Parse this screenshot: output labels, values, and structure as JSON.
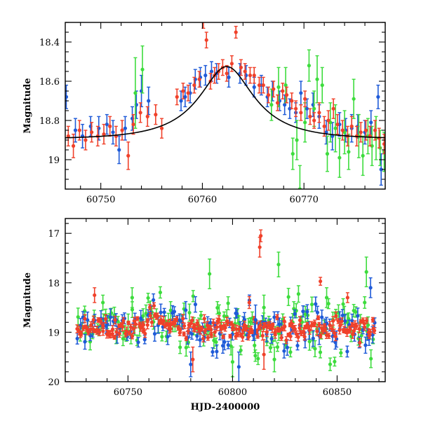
{
  "chart_data": [
    {
      "type": "scatter",
      "panel": "top",
      "title": "",
      "xlabel": "",
      "ylabel": "Magnitude",
      "xlim": [
        60746.5,
        60778.0
      ],
      "ylim": [
        18.3,
        19.15
      ],
      "y_inverted": true,
      "xticks": [
        60750,
        60760,
        60770
      ],
      "xtick_labels": [
        "60750",
        "60760",
        "60770"
      ],
      "yticks": [
        18.4,
        18.6,
        18.8,
        19.0
      ],
      "ytick_labels": [
        "18.4",
        "18.6",
        "18.8",
        "19"
      ],
      "grid": false,
      "legend": "none",
      "colors": {
        "blue": "#1f5bd8",
        "green": "#3ddc3d",
        "red": "#f0412a",
        "model": "#000000"
      },
      "model_curve": {
        "name": "",
        "baseline": 18.895,
        "peak_x": 60762.4,
        "peak_mag": 18.525,
        "tE": 6.0,
        "u0": 0.46
      },
      "series": [
        {
          "color_key": "blue",
          "x": [
            60746.6,
            60747.5,
            60748.2,
            60749.0,
            60749.8,
            60750.6,
            60751.2,
            60751.8,
            60752.4,
            60753.1,
            60753.5,
            60754.0,
            60754.7,
            60757.9,
            60758.3,
            60758.8,
            60759.3,
            60759.8,
            60760.3,
            60760.9,
            60761.4,
            60762.6,
            60763.7,
            60764.3,
            60765.1,
            60765.8,
            60766.4,
            60766.9,
            60767.6,
            60768.1,
            60768.6,
            60769.2,
            60769.7,
            60770.3,
            60770.9,
            60771.5,
            60772.2,
            60772.8,
            60773.5,
            60774.1,
            60774.7,
            60775.3,
            60776.0,
            60776.6,
            60777.3,
            60777.6
          ],
          "y": [
            18.68,
            18.85,
            18.88,
            18.83,
            18.84,
            18.82,
            18.86,
            18.95,
            18.84,
            18.79,
            18.72,
            18.65,
            18.7,
            18.7,
            18.68,
            18.66,
            18.59,
            18.58,
            18.57,
            18.55,
            18.56,
            18.58,
            18.56,
            18.57,
            18.63,
            18.62,
            18.68,
            18.65,
            18.7,
            18.72,
            18.74,
            18.76,
            18.66,
            18.74,
            18.72,
            18.78,
            18.86,
            18.88,
            18.82,
            18.85,
            18.84,
            18.83,
            18.86,
            18.81,
            18.68,
            19.05
          ],
          "err": [
            0.06,
            0.06,
            0.06,
            0.05,
            0.06,
            0.05,
            0.06,
            0.07,
            0.06,
            0.06,
            0.07,
            0.08,
            0.07,
            0.05,
            0.05,
            0.05,
            0.05,
            0.05,
            0.05,
            0.05,
            0.05,
            0.05,
            0.05,
            0.05,
            0.05,
            0.05,
            0.05,
            0.05,
            0.05,
            0.05,
            0.05,
            0.05,
            0.06,
            0.05,
            0.06,
            0.06,
            0.06,
            0.07,
            0.06,
            0.06,
            0.07,
            0.06,
            0.06,
            0.06,
            0.06,
            0.08
          ]
        },
        {
          "color_key": "green",
          "x": [
            60753.4,
            60754.1,
            60766.8,
            60767.5,
            60768.2,
            60768.9,
            60769.3,
            60769.6,
            60770.1,
            60770.5,
            60771.0,
            60771.3,
            60771.8,
            60772.3,
            60772.6,
            60773.1,
            60773.5,
            60774.0,
            60774.4,
            60774.9,
            60775.4,
            60775.8,
            60776.3,
            60776.7,
            60777.1,
            60777.5,
            60777.9
          ],
          "y": [
            18.66,
            18.54,
            18.72,
            18.63,
            18.62,
            18.97,
            18.9,
            19.15,
            18.81,
            18.52,
            18.74,
            18.59,
            18.62,
            18.97,
            18.81,
            18.84,
            18.99,
            18.86,
            18.96,
            18.69,
            18.88,
            18.98,
            18.88,
            18.93,
            18.89,
            18.94,
            18.96
          ],
          "err": [
            0.18,
            0.12,
            0.08,
            0.1,
            0.09,
            0.08,
            0.1,
            0.12,
            0.1,
            0.08,
            0.09,
            0.12,
            0.09,
            0.09,
            0.1,
            0.12,
            0.1,
            0.11,
            0.09,
            0.1,
            0.11,
            0.1,
            0.09,
            0.1,
            0.11,
            0.09,
            0.1
          ]
        },
        {
          "color_key": "red",
          "x": [
            60746.8,
            60747.3,
            60747.9,
            60748.5,
            60749.1,
            60749.7,
            60750.3,
            60750.9,
            60751.5,
            60752.1,
            60752.7,
            60753.2,
            60753.9,
            60754.6,
            60755.4,
            60756.0,
            60757.5,
            60758.1,
            60758.6,
            60759.2,
            60759.7,
            60760.1,
            60760.4,
            60760.8,
            60761.2,
            60761.6,
            60762.0,
            60762.4,
            60762.9,
            60763.3,
            60763.8,
            60764.2,
            60764.7,
            60765.1,
            60765.6,
            60766.0,
            60766.5,
            60767.0,
            60767.4,
            60767.9,
            60768.3,
            60768.8,
            60769.2,
            60769.7,
            60770.1,
            60770.6,
            60771.0,
            60771.5,
            60772.0,
            60772.4,
            60772.9,
            60773.3,
            60773.8,
            60774.3,
            60774.7,
            60775.2,
            60775.6,
            60776.1,
            60776.5,
            60777.0,
            60777.4,
            60777.9
          ],
          "y": [
            18.88,
            18.93,
            18.85,
            18.9,
            18.86,
            18.88,
            18.87,
            18.83,
            18.88,
            18.85,
            18.98,
            18.82,
            18.76,
            18.78,
            18.77,
            18.84,
            18.68,
            18.65,
            18.66,
            18.62,
            18.59,
            18.29,
            18.39,
            18.6,
            18.57,
            18.55,
            18.53,
            18.56,
            18.51,
            18.35,
            18.53,
            18.55,
            18.57,
            18.57,
            18.62,
            18.62,
            18.67,
            18.64,
            18.71,
            18.65,
            18.67,
            18.7,
            18.74,
            18.76,
            18.69,
            18.78,
            18.8,
            18.76,
            18.83,
            18.8,
            18.74,
            18.82,
            18.85,
            18.88,
            18.83,
            18.88,
            18.86,
            18.85,
            18.88,
            18.85,
            18.89,
            18.92
          ],
          "err": [
            0.05,
            0.06,
            0.05,
            0.05,
            0.05,
            0.05,
            0.05,
            0.05,
            0.05,
            0.05,
            0.07,
            0.05,
            0.05,
            0.05,
            0.05,
            0.05,
            0.04,
            0.04,
            0.04,
            0.04,
            0.04,
            0.04,
            0.04,
            0.04,
            0.04,
            0.04,
            0.04,
            0.04,
            0.04,
            0.03,
            0.04,
            0.04,
            0.04,
            0.04,
            0.04,
            0.04,
            0.04,
            0.04,
            0.04,
            0.04,
            0.04,
            0.04,
            0.04,
            0.04,
            0.04,
            0.04,
            0.04,
            0.05,
            0.05,
            0.05,
            0.05,
            0.05,
            0.05,
            0.05,
            0.05,
            0.05,
            0.05,
            0.05,
            0.05,
            0.05,
            0.05,
            0.05
          ]
        }
      ]
    },
    {
      "type": "scatter",
      "panel": "bottom",
      "title": "",
      "xlabel": "HJD-2400000",
      "ylabel": "Magnitude",
      "xlim": [
        60720,
        60873
      ],
      "ylim": [
        16.7,
        20.0
      ],
      "y_inverted": true,
      "xticks": [
        60750,
        60800,
        60850
      ],
      "xtick_labels": [
        "60750",
        "60800",
        "60850"
      ],
      "yticks": [
        17,
        18,
        19,
        20
      ],
      "ytick_labels": [
        "17",
        "18",
        "19",
        "20"
      ],
      "grid": false,
      "legend": "none",
      "baseline_mag": 18.92,
      "event_peak_x": 60762.4,
      "colors": {
        "blue": "#1f5bd8",
        "green": "#3ddc3d",
        "red": "#f0412a"
      },
      "outliers": [
        {
          "color_key": "red",
          "x": 60734,
          "y": 18.25,
          "err": 0.15
        },
        {
          "color_key": "red",
          "x": 60813,
          "y": 17.28,
          "err": 0.2
        },
        {
          "color_key": "red",
          "x": 60813.5,
          "y": 17.05,
          "err": 0.12
        },
        {
          "color_key": "red",
          "x": 60842,
          "y": 17.97,
          "err": 0.08
        },
        {
          "color_key": "red",
          "x": 60855,
          "y": 18.3,
          "err": 0.1
        },
        {
          "color_key": "red",
          "x": 60808,
          "y": 18.4,
          "err": 0.12
        },
        {
          "color_key": "green",
          "x": 60789,
          "y": 17.82,
          "err": 0.3
        },
        {
          "color_key": "green",
          "x": 60822,
          "y": 17.63,
          "err": 0.25
        },
        {
          "color_key": "green",
          "x": 60864,
          "y": 17.78,
          "err": 0.3
        },
        {
          "color_key": "green",
          "x": 60738,
          "y": 18.4,
          "err": 0.15
        },
        {
          "color_key": "green",
          "x": 60752,
          "y": 18.3,
          "err": 0.2
        },
        {
          "color_key": "green",
          "x": 60815,
          "y": 18.5,
          "err": 0.25
        },
        {
          "color_key": "green",
          "x": 60845,
          "y": 18.3,
          "err": 0.2
        },
        {
          "color_key": "green",
          "x": 60800,
          "y": 19.6,
          "err": 0.3
        },
        {
          "color_key": "green",
          "x": 60820,
          "y": 19.55,
          "err": 0.25
        },
        {
          "color_key": "blue",
          "x": 60866,
          "y": 18.1,
          "err": 0.2
        },
        {
          "color_key": "blue",
          "x": 60780,
          "y": 19.65,
          "err": 0.25
        },
        {
          "color_key": "blue",
          "x": 60803,
          "y": 19.7,
          "err": 0.3
        },
        {
          "color_key": "blue",
          "x": 60811,
          "y": 18.75,
          "err": 0.3
        },
        {
          "color_key": "red",
          "x": 60781,
          "y": 19.55,
          "err": 0.25
        },
        {
          "color_key": "red",
          "x": 60815,
          "y": 19.45,
          "err": 0.3
        }
      ],
      "dense_series": [
        {
          "color_key": "green",
          "x_start": 60726,
          "x_end": 60867,
          "count": 140,
          "scatter": 0.22,
          "err": 0.12
        },
        {
          "color_key": "blue",
          "x_start": 60726,
          "x_end": 60868,
          "count": 120,
          "scatter": 0.18,
          "err": 0.12
        },
        {
          "color_key": "red",
          "x_start": 60726,
          "x_end": 60868,
          "count": 220,
          "scatter": 0.09,
          "err": 0.06
        }
      ]
    }
  ]
}
